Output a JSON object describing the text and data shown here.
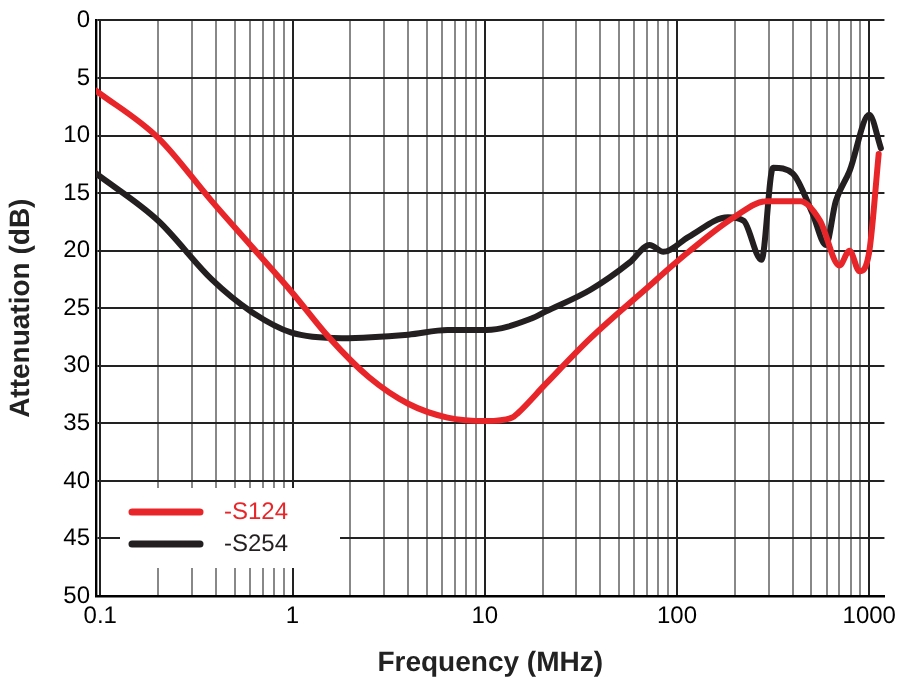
{
  "chart_data": {
    "type": "line",
    "xlabel": "Frequency (MHz)",
    "ylabel": "Attenuation (dB)",
    "log": "x",
    "grid": true,
    "legend": "bottom left",
    "marker": "none",
    "line_style": "solid",
    "xlim": [
      0.095,
      1200
    ],
    "ylim": [
      50,
      0
    ],
    "xticks": [
      0.1,
      {
        "value": 0.2,
        "label": null
      },
      {
        "value": 0.3,
        "label": null
      },
      {
        "value": 0.4,
        "label": null
      },
      {
        "value": 0.5,
        "label": null
      },
      {
        "value": 0.6,
        "label": null
      },
      {
        "value": 0.7,
        "label": null
      },
      {
        "value": 0.8,
        "label": null
      },
      {
        "value": 0.9,
        "label": null
      },
      1,
      {
        "value": 2,
        "label": null
      },
      {
        "value": 3,
        "label": null
      },
      {
        "value": 4,
        "label": null
      },
      {
        "value": 5,
        "label": null
      },
      {
        "value": 6,
        "label": null
      },
      {
        "value": 7,
        "label": null
      },
      {
        "value": 8,
        "label": null
      },
      {
        "value": 9,
        "label": null
      },
      10,
      {
        "value": 20,
        "label": null
      },
      {
        "value": 30,
        "label": null
      },
      {
        "value": 40,
        "label": null
      },
      {
        "value": 50,
        "label": null
      },
      {
        "value": 60,
        "label": null
      },
      {
        "value": 70,
        "label": null
      },
      {
        "value": 80,
        "label": null
      },
      {
        "value": 90,
        "label": null
      },
      100,
      {
        "value": 200,
        "label": null
      },
      {
        "value": 300,
        "label": null
      },
      {
        "value": 400,
        "label": null
      },
      {
        "value": 500,
        "label": null
      },
      {
        "value": 600,
        "label": null
      },
      {
        "value": 700,
        "label": null
      },
      {
        "value": 800,
        "label": null
      },
      {
        "value": 900,
        "label": null
      },
      1000
    ],
    "yticks": [
      0,
      5,
      10,
      15,
      20,
      25,
      30,
      35,
      40,
      45,
      50
    ],
    "series": [
      {
        "name": "-S124",
        "color": "#e8262a",
        "x": [
          0.095,
          0.2,
          0.38,
          0.61,
          0.98,
          1.56,
          2.5,
          4,
          6.4,
          10.2,
          13.9,
          14.9,
          20.7,
          35.5,
          67,
          115,
          198,
          294,
          438,
          555,
          700,
          790,
          890,
          1000,
          1120
        ],
        "values": [
          6.1,
          10.2,
          15.7,
          19.6,
          23.5,
          27.6,
          31,
          33.3,
          34.5,
          34.8,
          34.5,
          34.1,
          31.6,
          27.6,
          23.5,
          20.1,
          17.1,
          15.7,
          15.7,
          17.4,
          21.3,
          20,
          21.8,
          20.1,
          11.6
        ]
      },
      {
        "name": "-S254",
        "color": "#231f20",
        "x": [
          0.095,
          0.2,
          0.38,
          0.61,
          0.98,
          1.8,
          4,
          6.4,
          10.2,
          17.5,
          20.7,
          35.5,
          57,
          72,
          85,
          115,
          184,
          222,
          275,
          316,
          400,
          505,
          595,
          670,
          790,
          1000,
          1150
        ],
        "values": [
          13.3,
          17.4,
          22.5,
          25.3,
          27.1,
          27.6,
          27.3,
          26.9,
          26.9,
          25.9,
          25.3,
          23.4,
          21,
          19.5,
          20.1,
          18.8,
          17.1,
          17.4,
          20.8,
          12.8,
          13.3,
          16.7,
          19.5,
          15.7,
          13.1,
          8.2,
          11.1
        ]
      }
    ]
  }
}
